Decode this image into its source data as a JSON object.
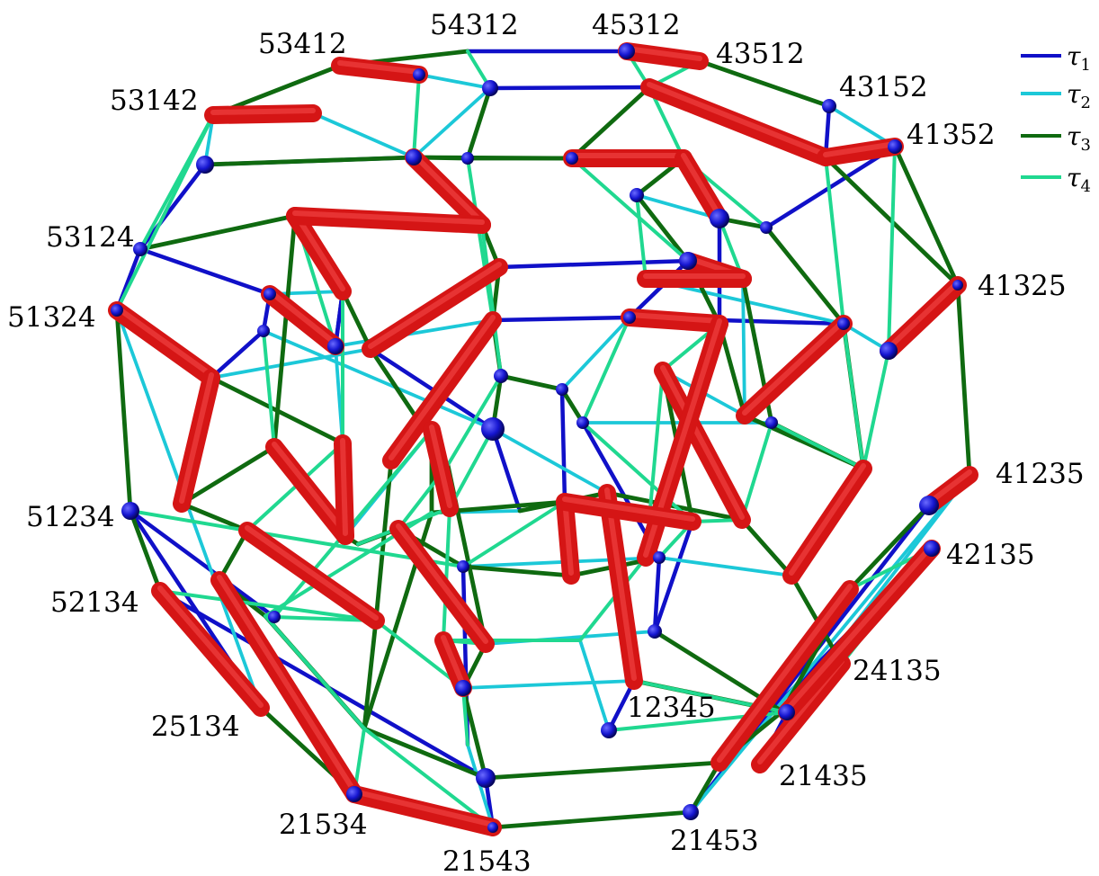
{
  "legend": {
    "items": [
      {
        "symbol": "τ",
        "subscript": "1",
        "color": "#1010c8"
      },
      {
        "symbol": "τ",
        "subscript": "2",
        "color": "#1cc8d8"
      },
      {
        "symbol": "τ",
        "subscript": "3",
        "color": "#0f6a10"
      },
      {
        "symbol": "τ",
        "subscript": "4",
        "color": "#20d890"
      }
    ]
  },
  "colors": {
    "highlight_edge": "#d51515",
    "node": "#1515d0"
  },
  "vertex_labels": [
    "54312",
    "45312",
    "53412",
    "43512",
    "53142",
    "43152",
    "41352",
    "53124",
    "41325",
    "51324",
    "51234",
    "41235",
    "42135",
    "52134",
    "24135",
    "12345",
    "25134",
    "21435",
    "21534",
    "21453",
    "21543"
  ]
}
